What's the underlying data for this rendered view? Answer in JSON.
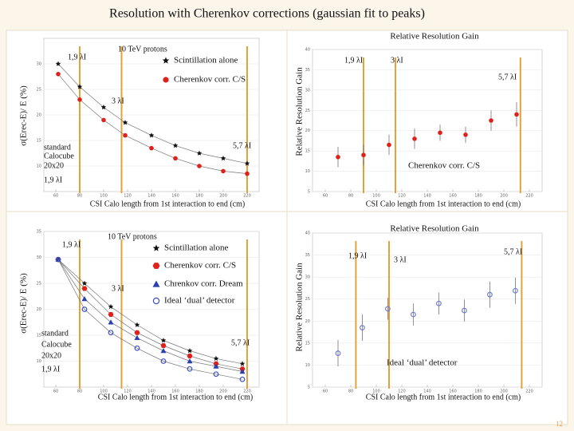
{
  "title": "Resolution with Cherenkov corrections (gaussian fit to peaks)",
  "page_number": "12",
  "chart_data": [
    {
      "type": "scatter",
      "y_label": "σ(Erec-E)/ E (%)",
      "x_label": "CSI Calo length from 1st interaction to end (cm)",
      "xlim": [
        50,
        230
      ],
      "xticks": [
        60,
        80,
        100,
        120,
        140,
        160,
        180,
        200,
        220
      ],
      "ylim": [
        5,
        35
      ],
      "yticks": [
        10,
        15,
        20,
        25,
        30
      ],
      "vlines": [
        80,
        115,
        220
      ],
      "vline_color": "#e3a23a",
      "annotations": [
        "10 TeV protons",
        "1,9 λI",
        "3 λI",
        "5,7 λI",
        "standard",
        "Calocube",
        "20x20",
        "1,9 λI"
      ],
      "series": [
        {
          "name": "Scintillation alone",
          "color": "#111111",
          "marker": "star",
          "x": [
            62,
            80,
            100,
            118,
            140,
            160,
            180,
            200,
            220
          ],
          "values": [
            30,
            25.5,
            21.5,
            18.5,
            16,
            14,
            12.5,
            11.5,
            10.5
          ]
        },
        {
          "name": "Cherenkov corr. C/S",
          "color": "#e0201b",
          "marker": "circle",
          "x": [
            62,
            80,
            100,
            118,
            140,
            160,
            180,
            200,
            220
          ],
          "values": [
            28,
            23,
            19,
            16,
            13.5,
            11.5,
            10,
            9,
            8.5
          ]
        }
      ]
    },
    {
      "type": "scatter",
      "title": "Relative Resolution Gain",
      "y_label": "Relative Resolution Gain",
      "x_label": "CSI Calo length from 1st interaction to end (cm)",
      "xlim": [
        50,
        230
      ],
      "xticks": [
        60,
        80,
        100,
        120,
        140,
        160,
        180,
        200,
        220
      ],
      "ylim": [
        5,
        40
      ],
      "yticks": [
        5,
        10,
        15,
        20,
        25,
        30,
        35,
        40
      ],
      "vlines": [
        90,
        115,
        213
      ],
      "vline_color": "#e3a23a",
      "annotations": [
        "1,9 λI",
        "3 λI",
        "5,7 λI"
      ],
      "series": [
        {
          "name": "Cherenkov corr. C/S",
          "color": "#e0201b",
          "marker": "circle",
          "x": [
            70,
            90,
            110,
            130,
            150,
            170,
            190,
            210
          ],
          "values": [
            13.5,
            14,
            16.5,
            18,
            19.5,
            19,
            22.5,
            24
          ],
          "errors": [
            2.5,
            2.5,
            2.5,
            2.5,
            2,
            2,
            2.5,
            3
          ]
        }
      ]
    },
    {
      "type": "scatter",
      "y_label": "σ(Erec-E)/ E (%)",
      "x_label": "CSI Calo length from 1st interaction to end (cm)",
      "xlim": [
        50,
        230
      ],
      "xticks": [
        60,
        80,
        100,
        120,
        140,
        160,
        180,
        200,
        220
      ],
      "ylim": [
        5,
        35
      ],
      "yticks": [
        10,
        15,
        20,
        25,
        30,
        35
      ],
      "vlines": [
        80,
        115,
        220
      ],
      "vline_color": "#e3a23a",
      "annotations": [
        "10 TeV protons",
        "1,9 λI",
        "3 λI",
        "5,7 λI",
        "standard",
        "Calocube",
        "20x20",
        "1,9 λI"
      ],
      "series": [
        {
          "name": "Scintillation alone",
          "color": "#111111",
          "marker": "star",
          "x": [
            62,
            84,
            106,
            128,
            150,
            172,
            194,
            216
          ],
          "values": [
            29.6,
            25,
            20.5,
            17,
            14,
            12,
            10.5,
            9.5
          ]
        },
        {
          "name": "Cherenkov corr. C/S",
          "color": "#e0201b",
          "marker": "hexagon",
          "x": [
            62,
            84,
            106,
            128,
            150,
            172,
            194,
            216
          ],
          "values": [
            29.6,
            24,
            19,
            15.5,
            13,
            11,
            9.5,
            8.5
          ]
        },
        {
          "name": "Chrenkov corr. Dream",
          "color": "#2a3fb0",
          "marker": "triangle",
          "x": [
            62,
            84,
            106,
            128,
            150,
            172,
            194,
            216
          ],
          "values": [
            29.6,
            22,
            17.5,
            14.5,
            12,
            10,
            9,
            8
          ]
        },
        {
          "name": "Ideal ‘dual’ detector",
          "color": "#3b4fc0",
          "marker": "open-circle",
          "x": [
            62,
            84,
            106,
            128,
            150,
            172,
            194,
            216
          ],
          "values": [
            29.6,
            20,
            15.5,
            12.5,
            10,
            8.5,
            7.5,
            6.5
          ]
        }
      ]
    },
    {
      "type": "scatter",
      "title": "Relative Resolution Gain",
      "y_label": "Relative Resolution Gain",
      "x_label": "CSI Calo length from 1st interaction to end (cm)",
      "xlim": [
        50,
        230
      ],
      "xticks": [
        60,
        80,
        100,
        120,
        140,
        160,
        180,
        200,
        220
      ],
      "ylim": [
        5,
        40
      ],
      "yticks": [
        5,
        10,
        15,
        20,
        25,
        30,
        35,
        40
      ],
      "vlines": [
        84,
        110,
        214
      ],
      "vline_color": "#e3a23a",
      "annotations": [
        "1,9 λI",
        "3 λI",
        "5,7 λI"
      ],
      "series": [
        {
          "name": "Ideal ‘dual’ detector",
          "color": "#6f7fd0",
          "marker": "open-circle",
          "x": [
            70,
            89,
            109,
            129,
            149,
            169,
            189,
            209
          ],
          "values": [
            12.7,
            18.5,
            22.8,
            21.5,
            24,
            22.4,
            26,
            26.9
          ],
          "errors": [
            3,
            3,
            2.5,
            2.5,
            2.5,
            2.5,
            3,
            3
          ]
        }
      ]
    }
  ]
}
